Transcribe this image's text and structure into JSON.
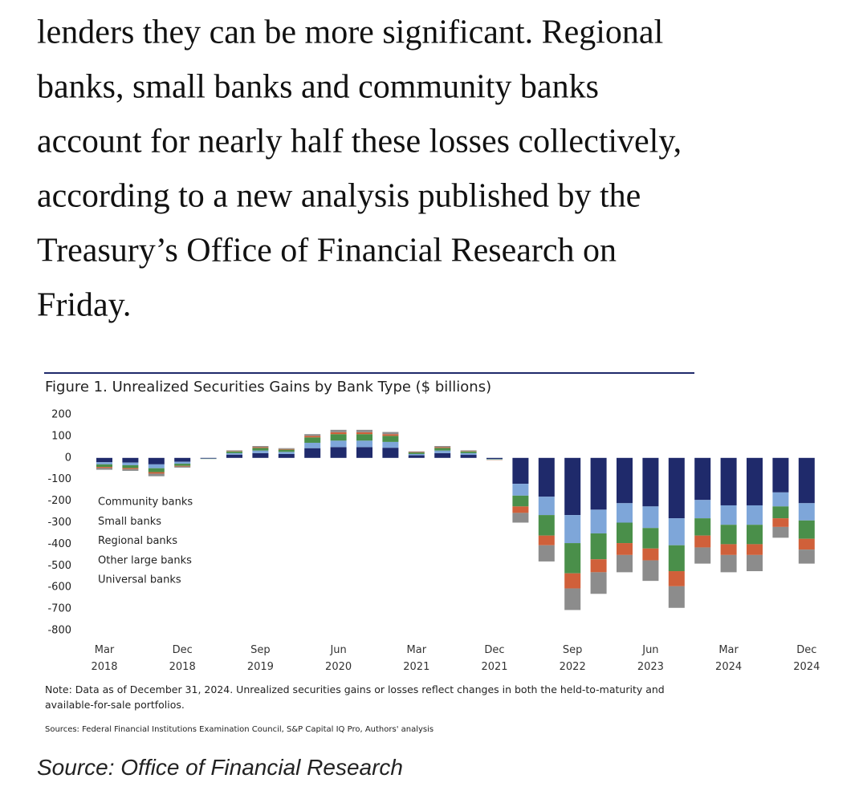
{
  "article": {
    "lines": [
      "lenders they can be more significant. Regional",
      "banks, small banks and community banks",
      "account for nearly half these losses collectively,",
      "according to a new analysis published by the",
      "Treasury’s Office of Financial Research on",
      "Friday."
    ]
  },
  "chart_data": {
    "type": "stacked_bar",
    "title": "Figure 1. Unrealized Securities Gains by Bank Type ($ billions)",
    "categories": [
      "Mar 2018",
      null,
      null,
      "Dec 2018",
      null,
      null,
      "Sep 2019",
      null,
      null,
      "Jun 2020",
      null,
      null,
      "Mar 2021",
      null,
      null,
      "Dec 2021",
      null,
      null,
      "Sep 2022",
      null,
      null,
      "Jun 2023",
      null,
      null,
      "Mar 2024",
      null,
      null,
      "Dec 2024"
    ],
    "series": [
      {
        "name": "Community banks",
        "color": "#8c8c8c",
        "values": [
          -8,
          -8,
          -12,
          -5,
          0,
          3,
          5,
          4,
          8,
          11,
          11,
          10,
          3,
          5,
          3,
          0,
          -45,
          -75,
          -100,
          -100,
          -80,
          -95,
          -100,
          -75,
          -80,
          -75,
          -50,
          -65
        ]
      },
      {
        "name": "Small banks",
        "color": "#d0603a",
        "values": [
          -5,
          -5,
          -7,
          -3,
          0,
          2,
          4,
          3,
          7,
          9,
          9,
          8,
          2,
          4,
          2,
          -1,
          -30,
          -45,
          -70,
          -60,
          -55,
          -55,
          -70,
          -55,
          -50,
          -50,
          -40,
          -50
        ]
      },
      {
        "name": "Regional banks",
        "color": "#4a8f4a",
        "values": [
          -12,
          -13,
          -18,
          -10,
          -1,
          8,
          12,
          10,
          25,
          30,
          30,
          28,
          7,
          12,
          8,
          -2,
          -50,
          -95,
          -140,
          -120,
          -95,
          -95,
          -120,
          -80,
          -90,
          -90,
          -55,
          -85
        ]
      },
      {
        "name": "Other large banks",
        "color": "#7ea6d9",
        "values": [
          -10,
          -12,
          -18,
          -9,
          -1,
          7,
          12,
          10,
          25,
          30,
          30,
          27,
          6,
          12,
          8,
          -2,
          -55,
          -85,
          -130,
          -110,
          -90,
          -100,
          -125,
          -85,
          -90,
          -90,
          -65,
          -80
        ]
      },
      {
        "name": "Universal banks",
        "color": "#1f2a6b",
        "values": [
          -20,
          -22,
          -30,
          -18,
          -3,
          15,
          22,
          18,
          45,
          50,
          50,
          47,
          12,
          22,
          14,
          -5,
          -120,
          -180,
          -265,
          -240,
          -210,
          -225,
          -280,
          -195,
          -220,
          -220,
          -160,
          -210
        ]
      }
    ],
    "ylim": [
      -800,
      200
    ],
    "yticks": [
      200,
      100,
      0,
      -100,
      -200,
      -300,
      -400,
      -500,
      -600,
      -700,
      -800
    ],
    "note": "Note: Data as of December 31, 2024. Unrealized securities gains or losses reflect changes in both the held-to-maturity and available-for-sale portfolios.",
    "sources": "Sources: Federal Financial Institutions Examination Council, S&P Capital IQ Pro, Authors' analysis"
  },
  "caption": "Source: Office of Financial Research"
}
